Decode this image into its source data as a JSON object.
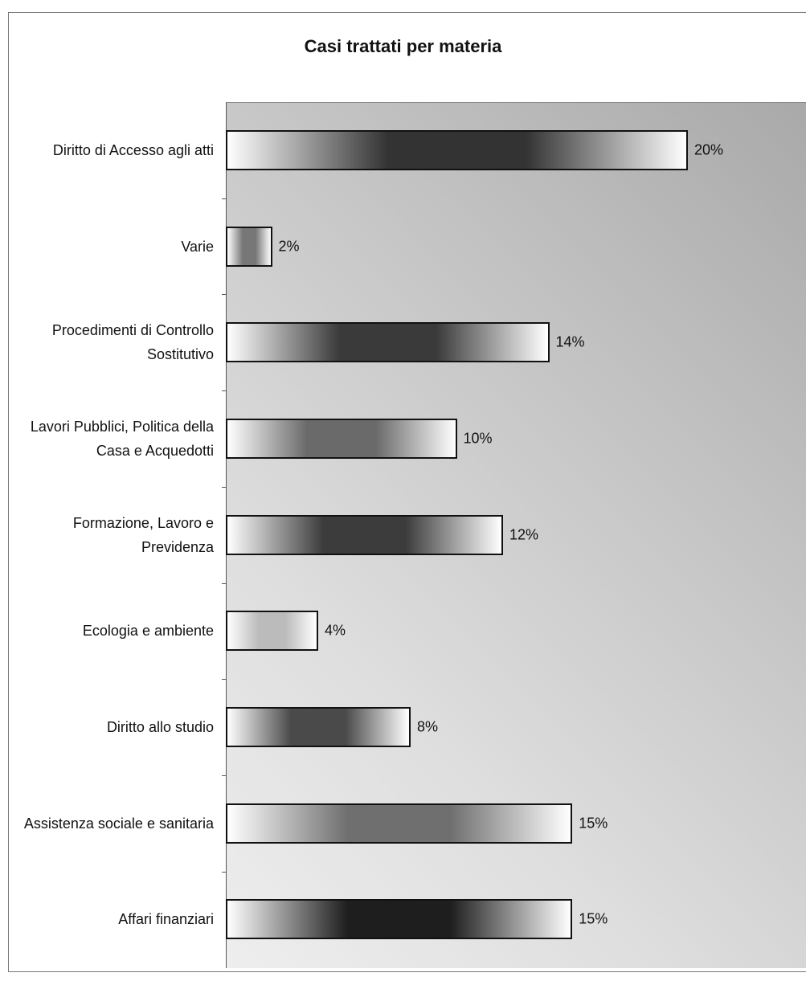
{
  "chart_data": {
    "type": "bar",
    "orientation": "horizontal",
    "title": "Casi trattati per materia",
    "categories": [
      "Diritto di Accesso agli atti",
      "Varie",
      "Procedimenti di Controllo Sostitutivo",
      "Lavori Pubblici, Politica della Casa e Acquedotti",
      "Formazione, Lavoro e Previdenza",
      "Ecologia e ambiente",
      "Diritto allo studio",
      "Assistenza sociale e sanitaria",
      "Affari finanziari"
    ],
    "values": [
      20,
      2,
      14,
      10,
      12,
      4,
      8,
      15,
      15
    ],
    "value_labels": [
      "20%",
      "2%",
      "14%",
      "10%",
      "12%",
      "4%",
      "8%",
      "15%",
      "15%"
    ],
    "colors": [
      "#333333",
      "#777777",
      "#3a3a3a",
      "#6a6a6a",
      "#3c3c3c",
      "#bbbbbb",
      "#4a4a4a",
      "#6f6f6f",
      "#1e1e1e"
    ]
  }
}
